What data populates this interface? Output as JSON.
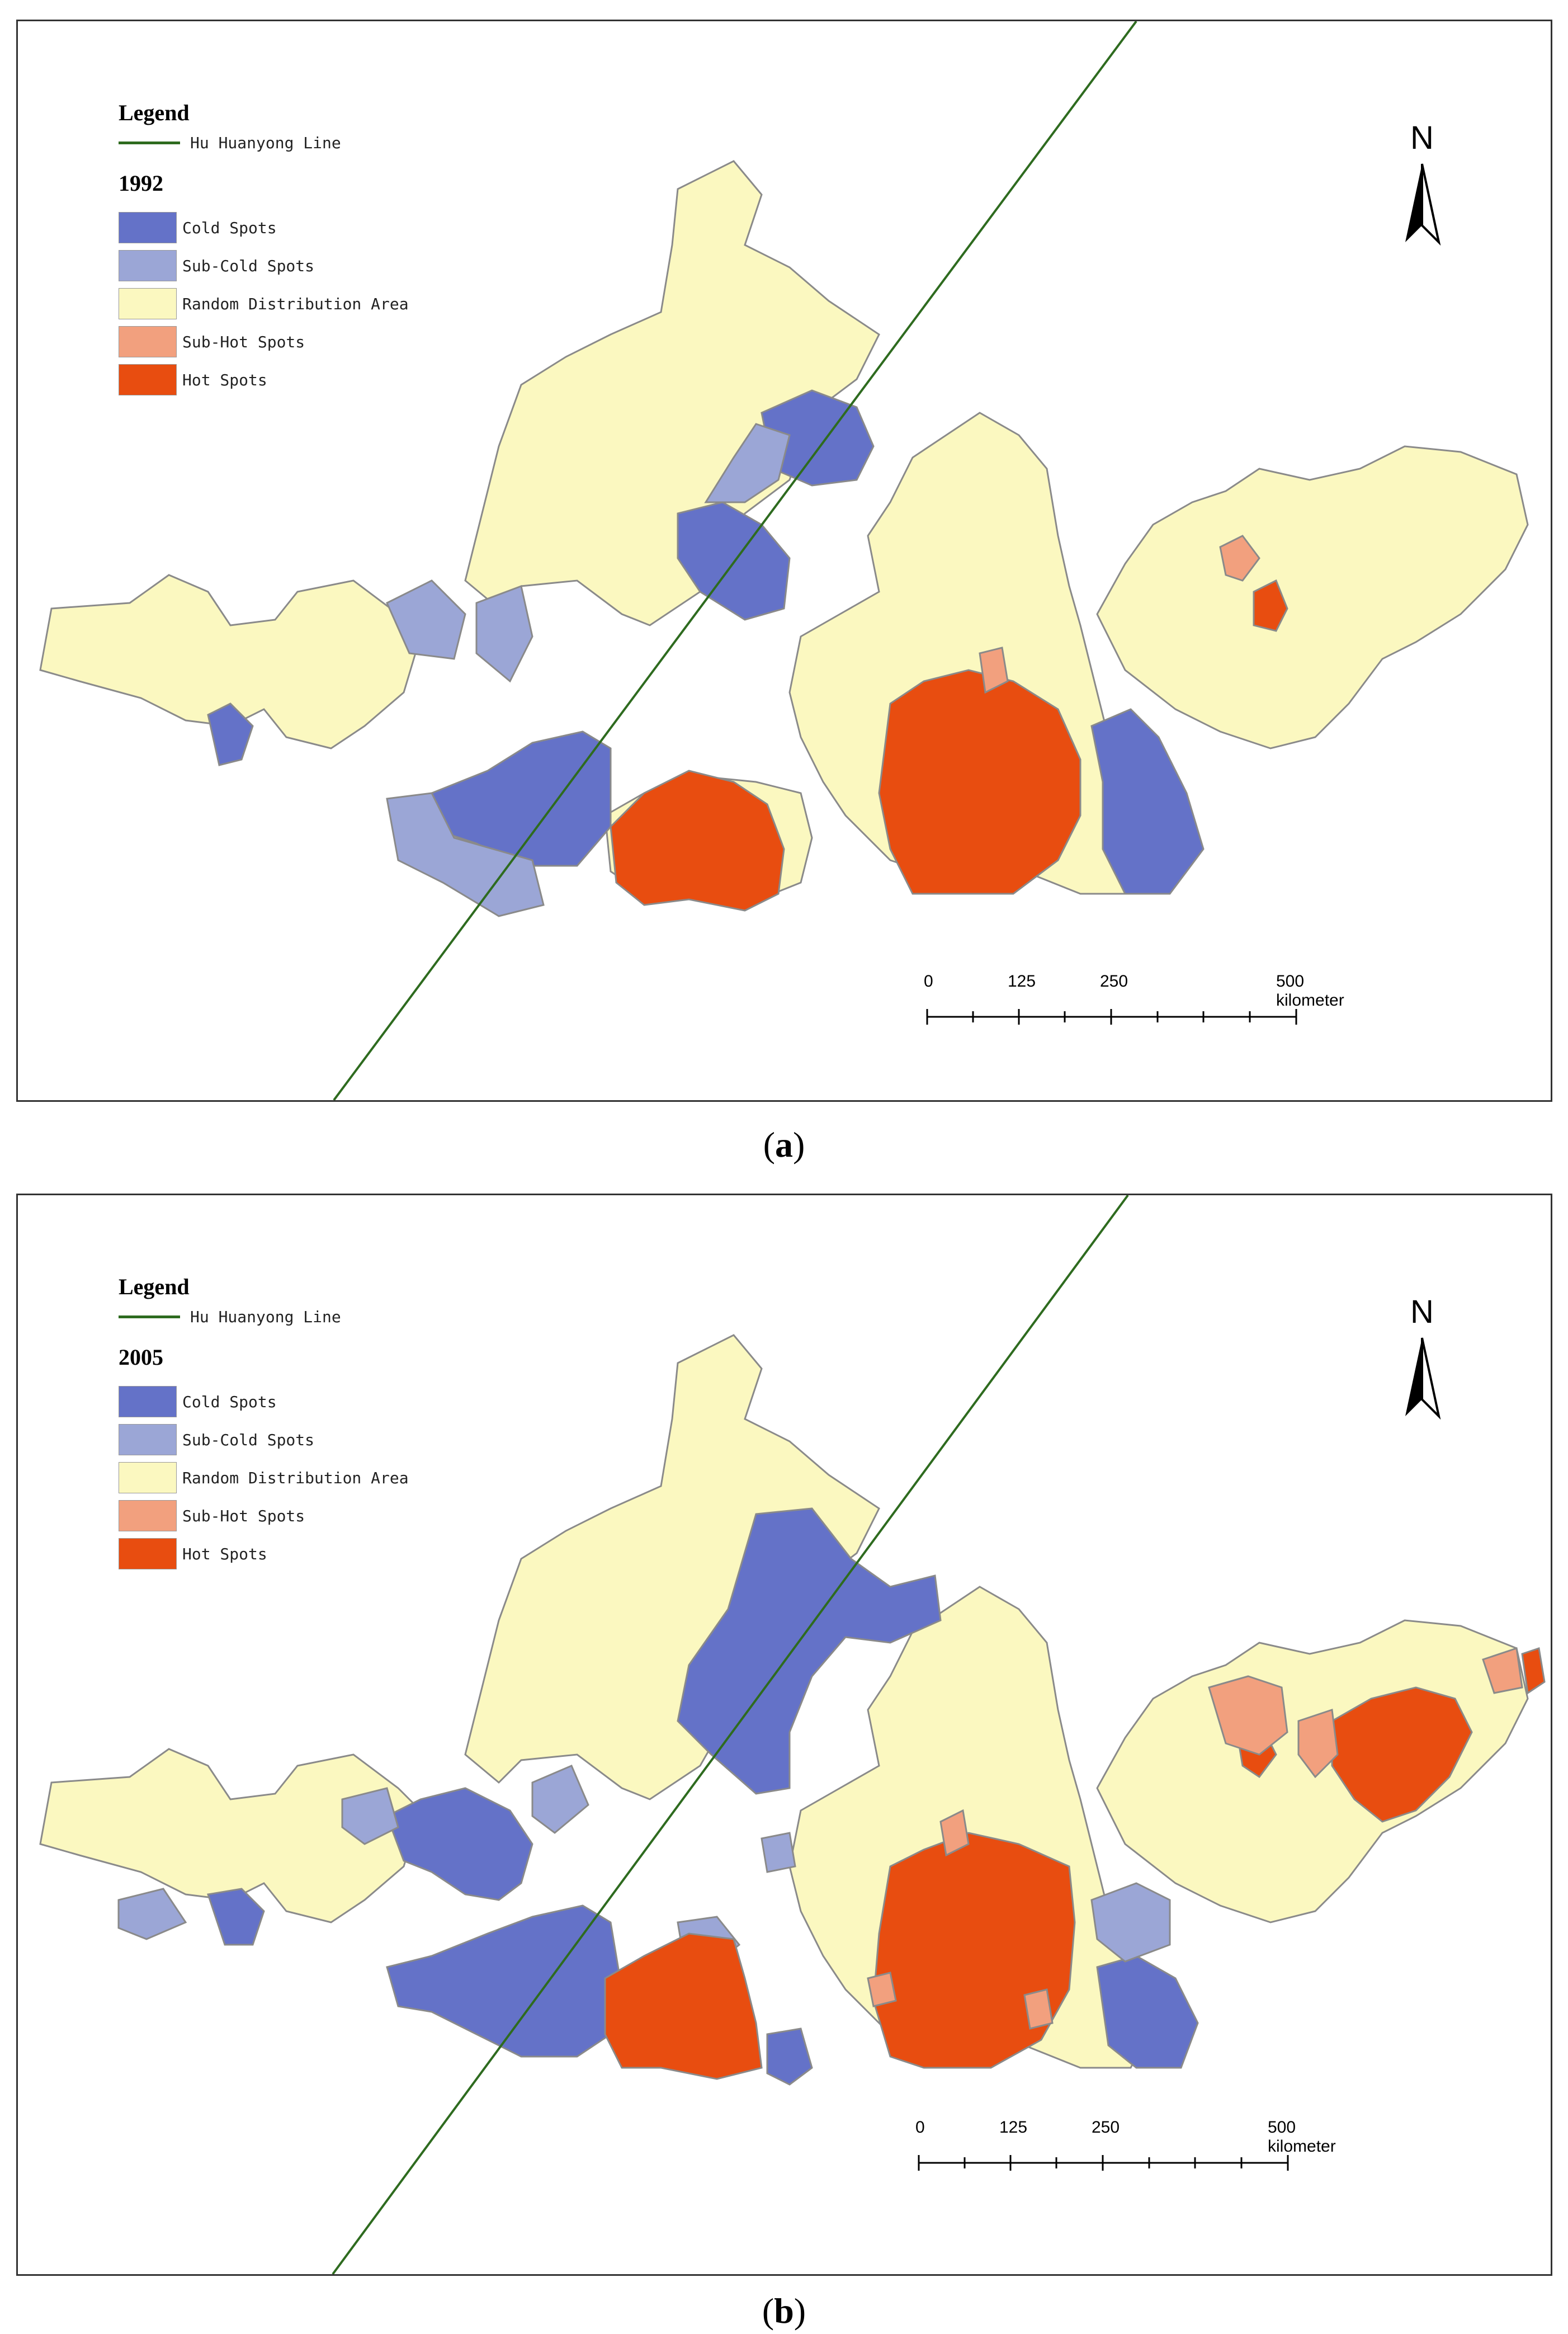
{
  "legend": {
    "title": "Legend",
    "line_label": "Hu Huanyong Line",
    "line_color": "#2e6b1f",
    "classes": [
      {
        "label": "Cold Spots",
        "color": "#6472c8"
      },
      {
        "label": "Sub-Cold Spots",
        "color": "#9ba6d6"
      },
      {
        "label": "Random Distribution Area",
        "color": "#fbf8c0"
      },
      {
        "label": "Sub-Hot Spots",
        "color": "#f2a07e"
      },
      {
        "label": "Hot Spots",
        "color": "#e84d10"
      }
    ]
  },
  "north_label": "N",
  "scale": {
    "ticks": [
      "0",
      "125",
      "250",
      "500 kilometer"
    ]
  },
  "panels": [
    {
      "year": "1992",
      "caption_letter": "a"
    },
    {
      "year": "2005",
      "caption_letter": "b"
    }
  ],
  "colors": {
    "boundary": "#8a8a8a",
    "frame": "#333333"
  }
}
